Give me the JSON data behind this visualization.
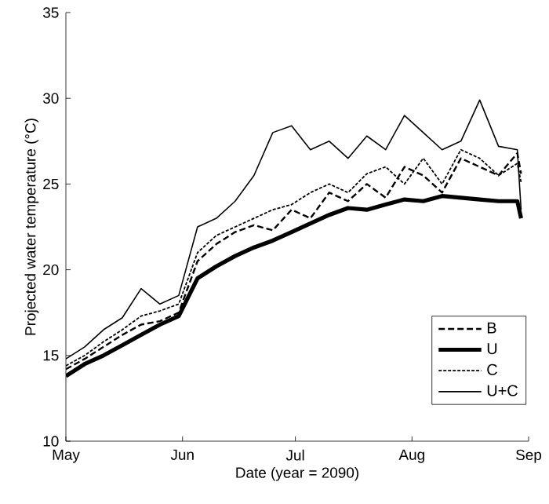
{
  "chart_data": {
    "type": "line",
    "xlabel": "Date (year = 2090)",
    "ylabel": "Projected water temperature (°C)",
    "x": [
      "2090-05-01",
      "2090-05-06",
      "2090-05-11",
      "2090-05-16",
      "2090-05-21",
      "2090-05-26",
      "2090-05-31",
      "2090-06-05",
      "2090-06-10",
      "2090-06-15",
      "2090-06-20",
      "2090-06-25",
      "2090-06-30",
      "2090-07-05",
      "2090-07-10",
      "2090-07-15",
      "2090-07-20",
      "2090-07-25",
      "2090-07-30",
      "2090-08-04",
      "2090-08-09",
      "2090-08-14",
      "2090-08-19",
      "2090-08-24",
      "2090-08-29",
      "2090-08-30"
    ],
    "series": [
      {
        "name": "B",
        "color": "#000000",
        "line_style": "dashed",
        "values": [
          14.2,
          14.8,
          15.5,
          16.2,
          16.8,
          17.0,
          17.5,
          20.5,
          21.5,
          22.2,
          22.6,
          22.3,
          23.5,
          23.0,
          24.5,
          24.0,
          25.0,
          24.2,
          26.0,
          25.5,
          24.5,
          26.5,
          26.0,
          25.5,
          26.8,
          25.6
        ]
      },
      {
        "name": "U",
        "color": "#000000",
        "line_style": "solid",
        "values": [
          13.8,
          14.5,
          15.0,
          15.6,
          16.2,
          16.8,
          17.3,
          19.5,
          20.2,
          20.8,
          21.3,
          21.7,
          22.2,
          22.7,
          23.2,
          23.6,
          23.5,
          23.8,
          24.1,
          24.0,
          24.3,
          24.2,
          24.1,
          24.0,
          24.0,
          23.0
        ]
      },
      {
        "name": "C",
        "color": "#000000",
        "line_style": "dotted",
        "values": [
          14.4,
          15.0,
          15.8,
          16.5,
          17.3,
          17.6,
          18.0,
          21.0,
          22.0,
          22.5,
          23.0,
          23.5,
          23.8,
          24.5,
          25.0,
          24.5,
          25.6,
          26.0,
          25.0,
          26.5,
          25.0,
          27.0,
          26.5,
          25.5,
          26.2,
          25.1
        ]
      },
      {
        "name": "U+C",
        "color": "#000000",
        "line_style": "solid",
        "values": [
          14.8,
          15.5,
          16.5,
          17.2,
          18.9,
          18.0,
          18.5,
          22.5,
          23.0,
          24.0,
          25.5,
          28.0,
          28.4,
          27.0,
          27.5,
          26.5,
          27.8,
          27.0,
          29.0,
          28.0,
          27.0,
          27.5,
          29.9,
          27.2,
          27.0,
          23.5
        ]
      }
    ],
    "xlim": [
      "2090-05-01",
      "2090-09-01"
    ],
    "xticks": [
      {
        "value": "2090-05-01",
        "label": "May"
      },
      {
        "value": "2090-06-01",
        "label": "Jun"
      },
      {
        "value": "2090-07-01",
        "label": "Jul"
      },
      {
        "value": "2090-08-01",
        "label": "Aug"
      },
      {
        "value": "2090-09-01",
        "label": "Sep"
      }
    ],
    "ylim": [
      10,
      35
    ],
    "yticks": [
      10,
      15,
      20,
      25,
      30,
      35
    ],
    "legend": "bottom right",
    "marker": "none"
  }
}
